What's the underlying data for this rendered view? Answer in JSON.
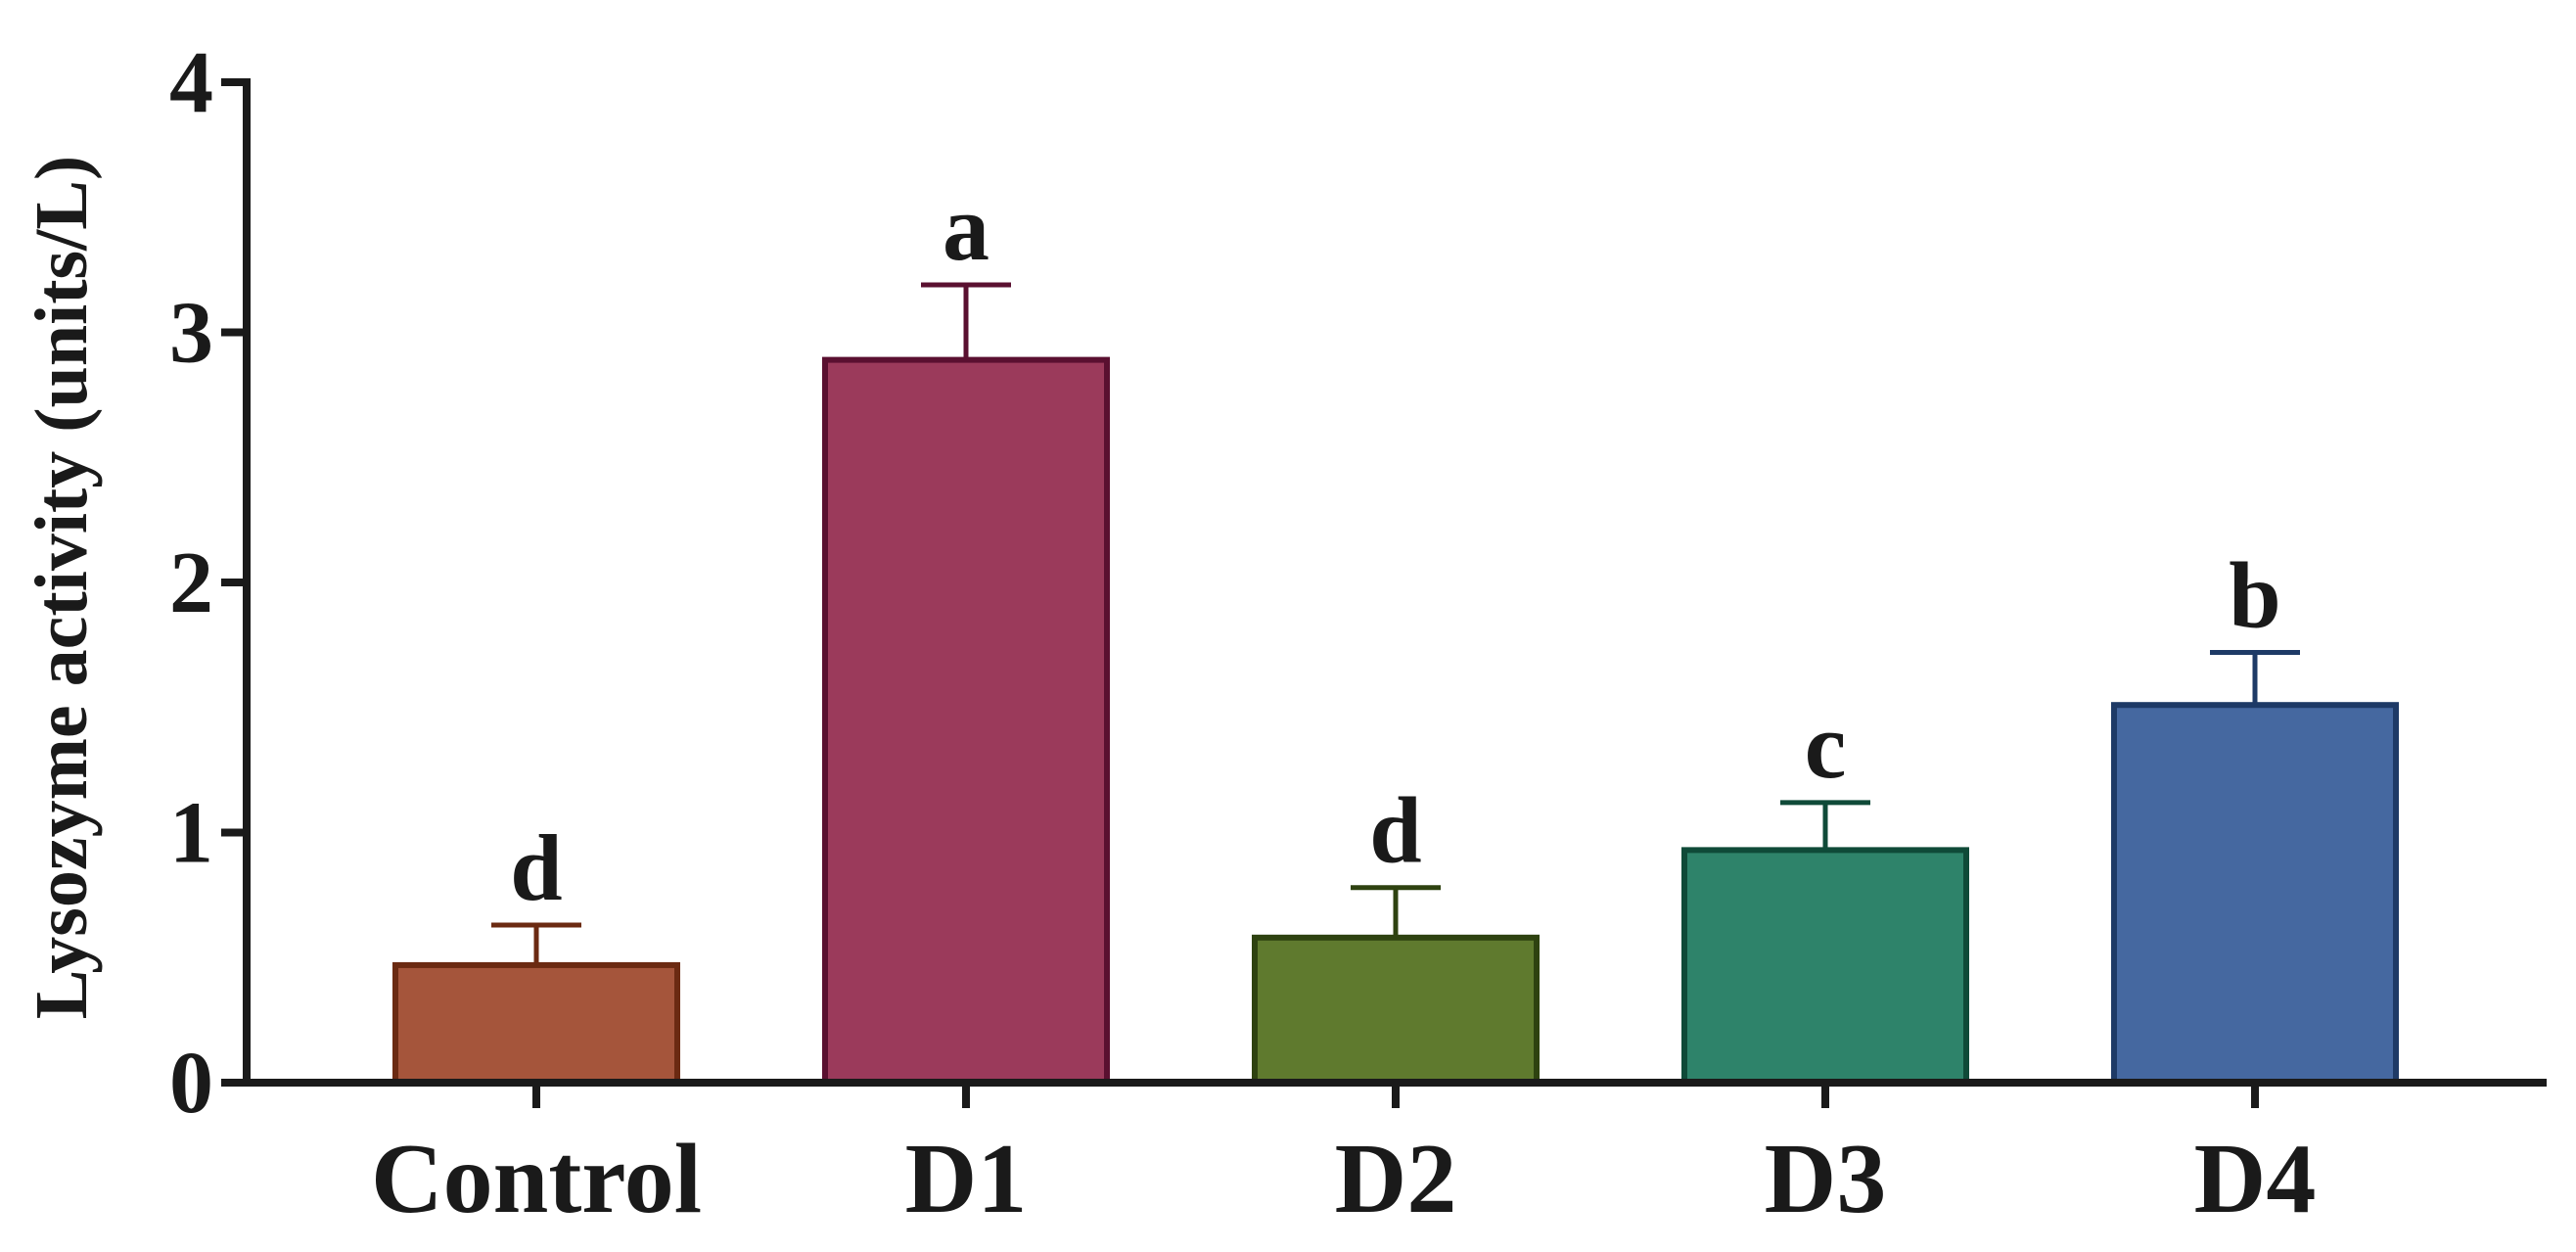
{
  "chart_data": {
    "type": "bar",
    "title": "",
    "xlabel": "",
    "ylabel": "Lysozyme activity (units/L)",
    "ylim": [
      0,
      4
    ],
    "y_ticks": [
      0,
      1,
      2,
      3,
      4
    ],
    "y_tick_labels": [
      "0",
      "1",
      "2",
      "3",
      "4"
    ],
    "grid": false,
    "legend": "none",
    "categories": [
      "Control",
      "D1",
      "D2",
      "D3",
      "D4"
    ],
    "values": [
      0.47,
      2.89,
      0.58,
      0.93,
      1.51
    ],
    "errors": [
      0.16,
      0.3,
      0.2,
      0.19,
      0.21
    ],
    "significance_letters": [
      "d",
      "a",
      "d",
      "c",
      "b"
    ],
    "colors": {
      "fill": [
        "#A5553B",
        "#9B3A5B",
        "#5F7A2E",
        "#2E836A",
        "#4568A0"
      ],
      "edge": [
        "#6B2A12",
        "#5A1030",
        "#2E4210",
        "#0F4A38",
        "#1E3A66"
      ]
    }
  }
}
